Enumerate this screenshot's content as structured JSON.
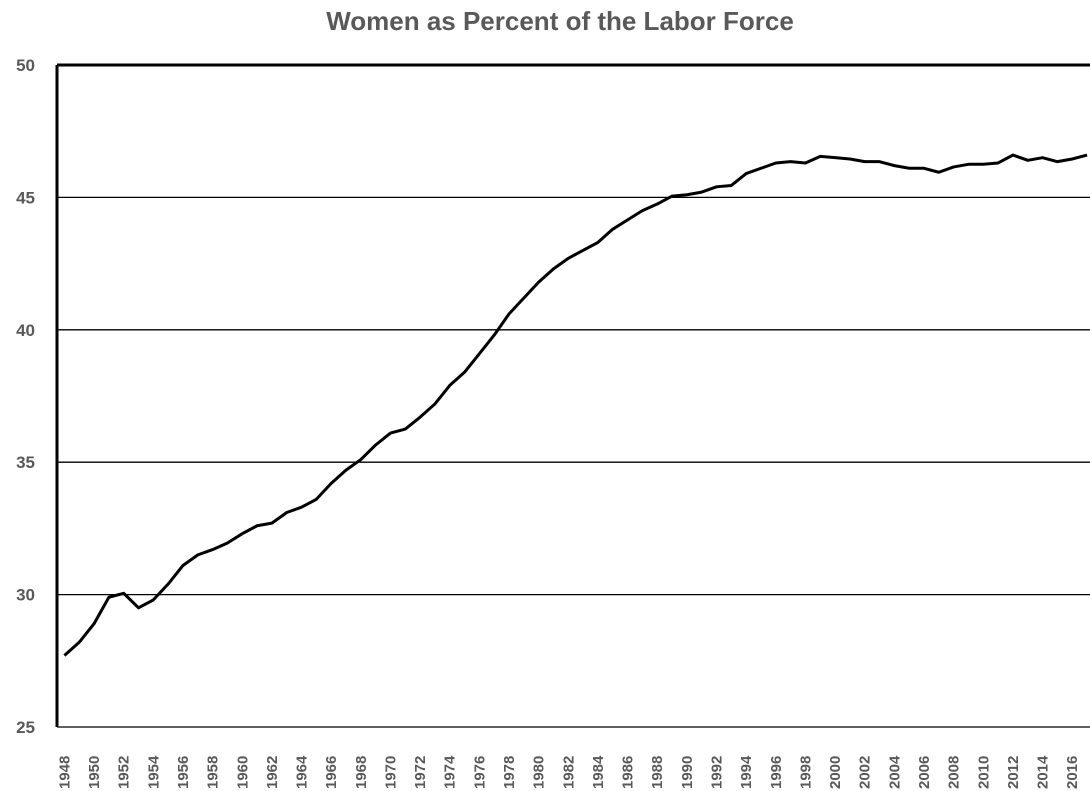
{
  "chart_data": {
    "type": "line",
    "title": "Women as Percent of the Labor Force",
    "x": [
      1948,
      1949,
      1950,
      1951,
      1952,
      1953,
      1954,
      1955,
      1956,
      1957,
      1958,
      1959,
      1960,
      1961,
      1962,
      1963,
      1964,
      1965,
      1966,
      1967,
      1968,
      1969,
      1970,
      1971,
      1972,
      1973,
      1974,
      1975,
      1976,
      1977,
      1978,
      1979,
      1980,
      1981,
      1982,
      1983,
      1984,
      1985,
      1986,
      1987,
      1988,
      1989,
      1990,
      1991,
      1992,
      1993,
      1994,
      1995,
      1996,
      1997,
      1998,
      1999,
      2000,
      2001,
      2002,
      2003,
      2004,
      2005,
      2006,
      2007,
      2008,
      2009,
      2010,
      2011,
      2012,
      2013,
      2014,
      2015,
      2016,
      2017
    ],
    "values": [
      27.7,
      28.2,
      28.9,
      29.9,
      30.05,
      29.5,
      29.8,
      30.4,
      31.1,
      31.5,
      31.7,
      31.95,
      32.3,
      32.6,
      32.7,
      33.1,
      33.3,
      33.6,
      34.2,
      34.7,
      35.1,
      35.65,
      36.1,
      36.25,
      36.7,
      37.2,
      37.9,
      38.4,
      39.1,
      39.8,
      40.6,
      41.2,
      41.8,
      42.3,
      42.7,
      43.0,
      43.3,
      43.8,
      44.15,
      44.5,
      44.75,
      45.05,
      45.1,
      45.2,
      45.4,
      45.45,
      45.9,
      46.1,
      46.3,
      46.35,
      46.3,
      46.55,
      46.5,
      46.45,
      46.35,
      46.35,
      46.2,
      46.1,
      46.1,
      45.95,
      46.15,
      46.25,
      46.25,
      46.3,
      46.6,
      46.4,
      46.5,
      46.35,
      46.45,
      46.6
    ],
    "color": "#000000",
    "xlim": [
      1947.5,
      2017.2
    ],
    "xticks": [
      1948,
      1950,
      1952,
      1954,
      1956,
      1958,
      1960,
      1962,
      1964,
      1966,
      1968,
      1970,
      1972,
      1974,
      1976,
      1978,
      1980,
      1982,
      1984,
      1986,
      1988,
      1990,
      1992,
      1994,
      1996,
      1998,
      2000,
      2002,
      2004,
      2006,
      2008,
      2010,
      2012,
      2014,
      2016
    ],
    "ylim": [
      25,
      50
    ],
    "yticks": [
      25,
      30,
      35,
      40,
      45,
      50
    ],
    "grid": true
  }
}
